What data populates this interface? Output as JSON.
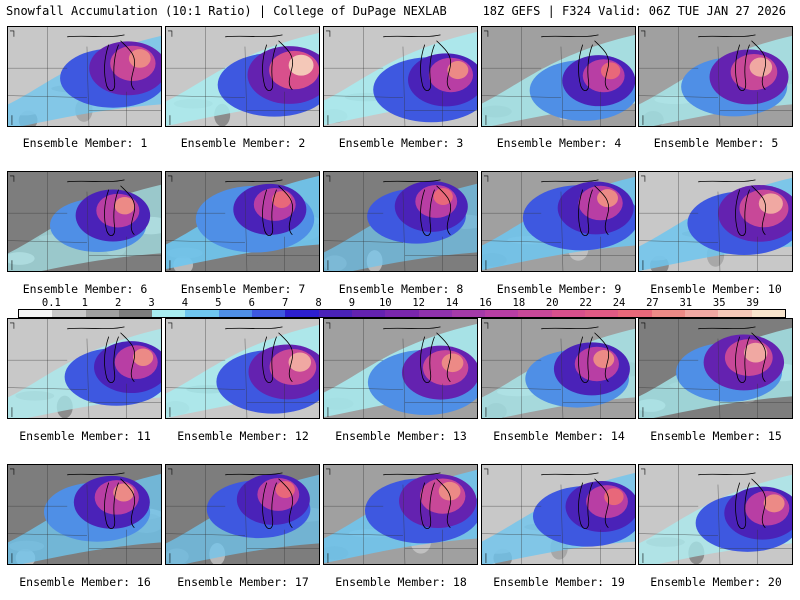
{
  "header": {
    "left_title": "Snowfall Accumulation (10:1 Ratio) | College of DuPage NEXLAB",
    "right_title": "18Z GEFS | F324 Valid: 06Z TUE JAN 27 2026"
  },
  "legend": {
    "ticks": [
      "0.1",
      "1",
      "2",
      "3",
      "4",
      "5",
      "6",
      "7",
      "8",
      "9",
      "10",
      "12",
      "14",
      "16",
      "18",
      "20",
      "22",
      "24",
      "27",
      "31",
      "35",
      "39"
    ],
    "colors": [
      "#f5f5f5",
      "#c8c8c8",
      "#a0a0a0",
      "#7d7d7d",
      "#a8ecf0",
      "#6fc6ef",
      "#4f8fe6",
      "#3e58e0",
      "#2d1fd0",
      "#4a22b8",
      "#6422b0",
      "#7a26ae",
      "#9032ae",
      "#a43aa8",
      "#b83ea4",
      "#c84898",
      "#d8508c",
      "#e05a84",
      "#e8687a",
      "#ec8a86",
      "#f0a8a2",
      "#f4c8b8",
      "#f8e4cc"
    ]
  },
  "members": [
    {
      "label": "Ensemble Member: 1",
      "intensity": 0.75,
      "coverage": 0.55
    },
    {
      "label": "Ensemble Member: 2",
      "intensity": 0.95,
      "coverage": 0.7
    },
    {
      "label": "Ensemble Member: 3",
      "intensity": 0.7,
      "coverage": 0.75
    },
    {
      "label": "Ensemble Member: 4",
      "intensity": 0.6,
      "coverage": 0.6
    },
    {
      "label": "Ensemble Member: 5",
      "intensity": 0.8,
      "coverage": 0.55
    },
    {
      "label": "Ensemble Member: 6",
      "intensity": 0.65,
      "coverage": 0.35
    },
    {
      "label": "Ensemble Member: 7",
      "intensity": 0.6,
      "coverage": 0.8
    },
    {
      "label": "Ensemble Member: 8",
      "intensity": 0.6,
      "coverage": 0.4
    },
    {
      "label": "Ensemble Member: 9",
      "intensity": 0.7,
      "coverage": 0.75
    },
    {
      "label": "Ensemble Member: 10",
      "intensity": 0.9,
      "coverage": 0.7
    },
    {
      "label": "Ensemble Member: 11",
      "intensity": 0.65,
      "coverage": 0.5
    },
    {
      "label": "Ensemble Member: 12",
      "intensity": 0.8,
      "coverage": 0.7
    },
    {
      "label": "Ensemble Member: 13",
      "intensity": 0.75,
      "coverage": 0.75
    },
    {
      "label": "Ensemble Member: 14",
      "intensity": 0.7,
      "coverage": 0.5
    },
    {
      "label": "Ensemble Member: 15",
      "intensity": 0.85,
      "coverage": 0.55
    },
    {
      "label": "Ensemble Member: 16",
      "intensity": 0.7,
      "coverage": 0.55
    },
    {
      "label": "Ensemble Member: 17",
      "intensity": 0.6,
      "coverage": 0.5
    },
    {
      "label": "Ensemble Member: 18",
      "intensity": 0.75,
      "coverage": 0.75
    },
    {
      "label": "Ensemble Member: 19",
      "intensity": 0.6,
      "coverage": 0.6
    },
    {
      "label": "Ensemble Member: 20",
      "intensity": 0.7,
      "coverage": 0.5
    }
  ]
}
